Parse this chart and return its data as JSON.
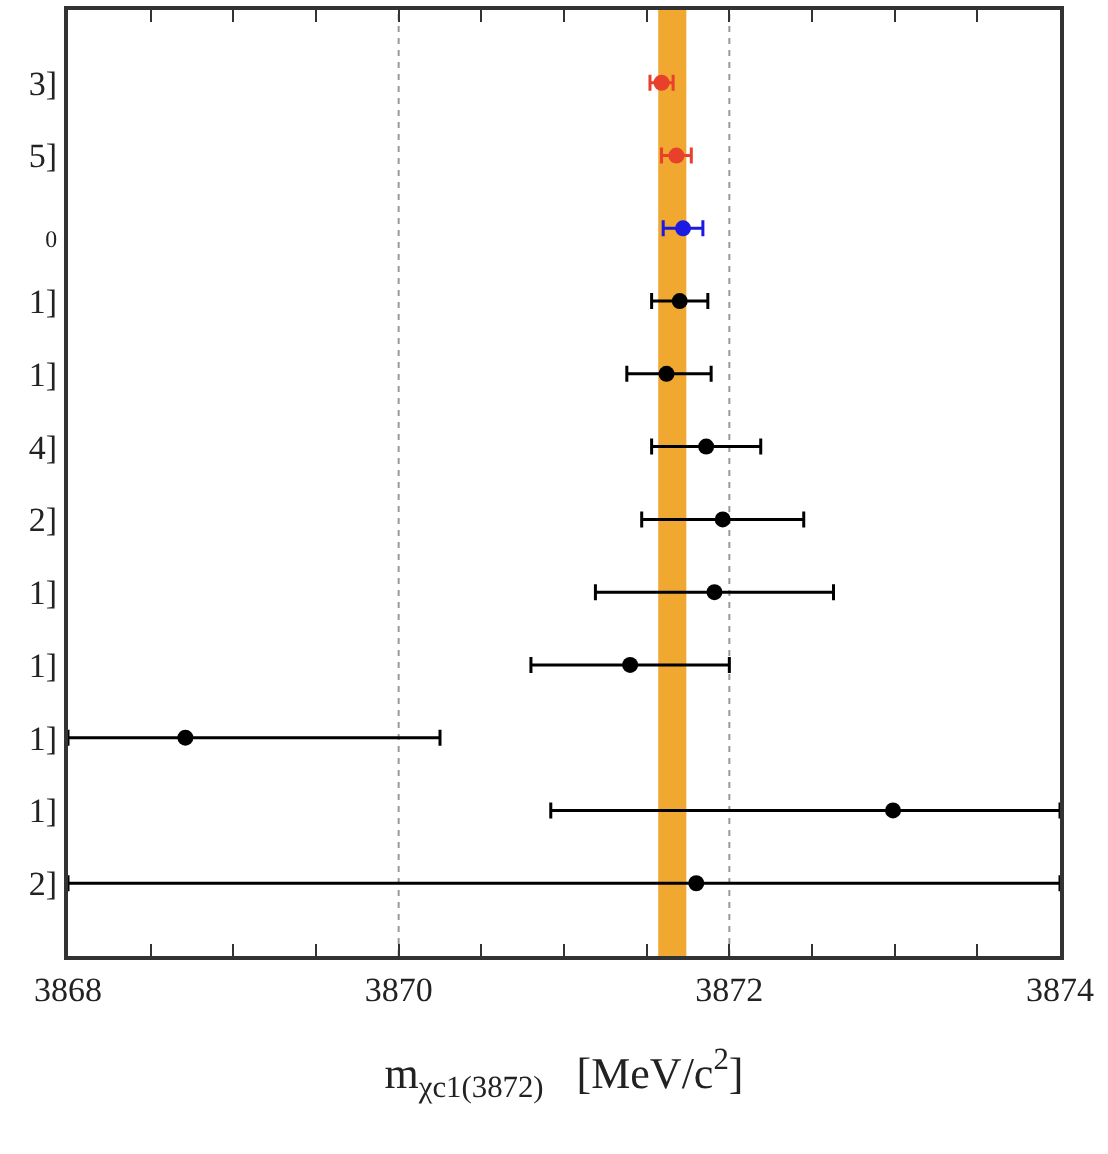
{
  "chart_data": {
    "type": "scatter",
    "orientation": "horizontal",
    "categories": [
      "3]",
      "5]",
      "$_{0}$",
      "1]",
      "1]",
      "4]",
      "2]",
      "1]",
      "1]",
      "1]",
      "1]",
      "2]"
    ],
    "values": [
      3871.59,
      3871.68,
      3871.72,
      3871.7,
      3871.62,
      3871.86,
      3871.96,
      3871.91,
      3871.4,
      3868.71,
      3872.99,
      3871.8
    ],
    "errors": [
      0.07,
      0.09,
      0.12,
      0.17,
      [
        3871.38,
        3871.89
      ],
      0.33,
      0.49,
      0.72,
      0.6,
      [
        3868,
        3870.25
      ],
      [
        3870.92,
        3874
      ],
      [
        3868,
        3874
      ]
    ],
    "colors": [
      "#e8402a",
      "#e8402a",
      "#1a1ae0",
      "#000000",
      "#000000",
      "#000000",
      "#000000",
      "#000000",
      "#000000",
      "#000000",
      "#000000",
      "#000000"
    ],
    "xlim": [
      3868,
      3874
    ],
    "xticks": [
      3868,
      {
        "value": 3868.5,
        "label": null
      },
      {
        "value": 3869,
        "label": null
      },
      {
        "value": 3869.5,
        "label": null
      },
      3870,
      {
        "value": 3870.5,
        "label": null
      },
      {
        "value": 3871,
        "label": null
      },
      {
        "value": 3871.5,
        "label": null
      },
      3872,
      {
        "value": 3872.5,
        "label": null
      },
      {
        "value": 3873,
        "label": null
      },
      {
        "value": 3873.5,
        "label": null
      },
      3874
    ],
    "xlabel": "m$_{χc1(3872)}$   [MeV/c$^{2}$]",
    "bands": [
      {
        "axis": "x",
        "from": 3871.57,
        "to": 3871.74,
        "color": "#f0a830"
      }
    ],
    "ref_lines": [
      {
        "axis": "x",
        "value": 3870,
        "color": "#999999",
        "line_style": "dotted"
      },
      {
        "axis": "x",
        "value": 3872,
        "color": "#999999",
        "line_style": "dotted"
      }
    ],
    "legend": false
  }
}
